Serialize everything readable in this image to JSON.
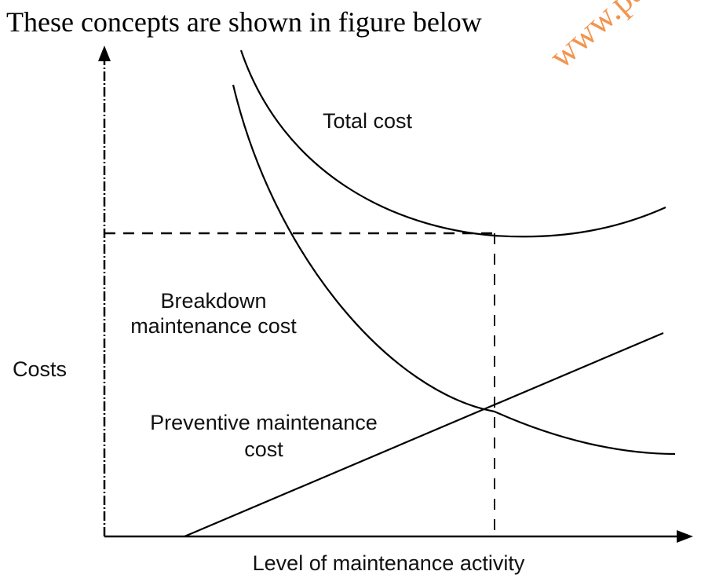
{
  "heading": "These concepts are shown in figure below",
  "watermark": "www.pa",
  "diagram": {
    "y_axis_label": "Costs",
    "x_axis_label": "Level of maintenance activity",
    "curves": {
      "total_cost": "Total cost",
      "breakdown_line1": "Breakdown",
      "breakdown_line2": "maintenance cost",
      "preventive_line1": "Preventive maintenance",
      "preventive_line2": "cost"
    }
  }
}
